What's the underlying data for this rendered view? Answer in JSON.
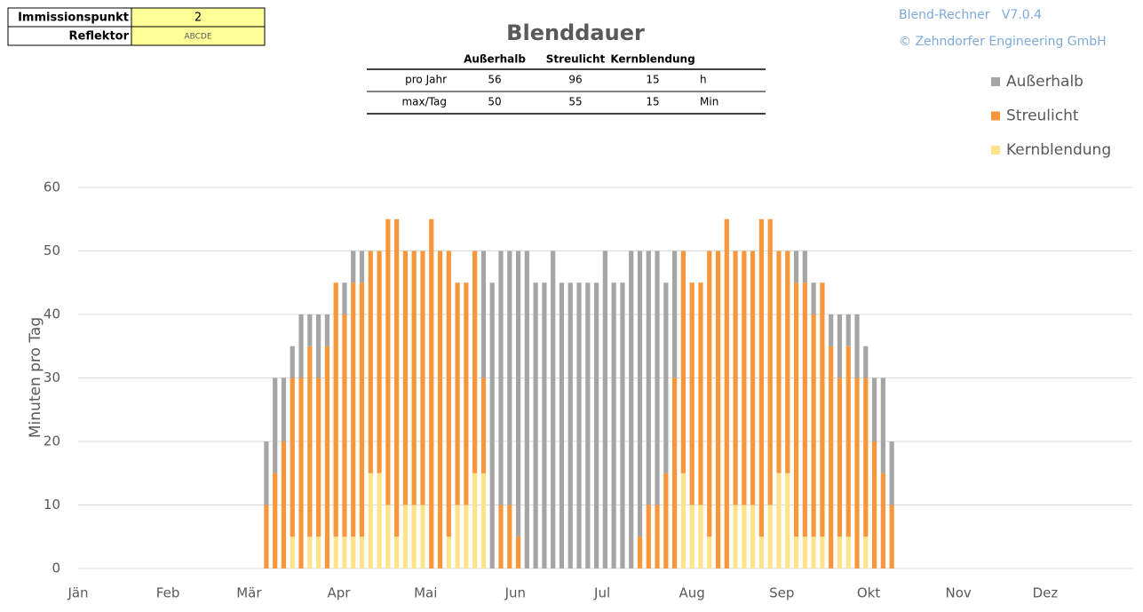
{
  "info": {
    "id_label": "Immissionspunkt",
    "id_value": 2,
    "reflector_label": "Reflektor",
    "reflector_value": "ABCDE",
    "version": "Blend-Rechner   V7.0.4",
    "company": "© Zehndorfer Engineering GmbH"
  },
  "summary": {
    "columns": [
      "Außerhalb",
      "Streulicht",
      "Kernblendung"
    ],
    "rows": [
      {
        "label": "pro Jahr",
        "values": [
          56,
          96,
          15
        ],
        "unit": "h"
      },
      {
        "label": "max/Tag",
        "values": [
          50,
          55,
          15
        ],
        "unit": "Min"
      }
    ]
  },
  "chart_data": {
    "type": "bar",
    "stacked": true,
    "title": "Blenddauer",
    "ylabel": "Minuten pro Tag",
    "x": [
      66,
      69,
      72,
      75,
      78,
      81,
      84,
      87,
      90,
      93,
      96,
      99,
      102,
      105,
      108,
      111,
      114,
      117,
      120,
      123,
      126,
      129,
      132,
      135,
      138,
      141,
      144,
      147,
      150,
      153,
      156,
      159,
      162,
      165,
      168,
      171,
      174,
      177,
      180,
      183,
      186,
      189,
      192,
      195,
      198,
      201,
      204,
      207,
      210,
      213,
      216,
      219,
      222,
      225,
      228,
      231,
      234,
      237,
      240,
      243,
      246,
      249,
      252,
      255,
      258,
      261,
      264,
      267,
      270,
      273,
      276,
      279,
      282
    ],
    "xlim": [
      1,
      366
    ],
    "xticks": [
      {
        "value": 1,
        "label": "Jän"
      },
      {
        "value": 32,
        "label": "Feb"
      },
      {
        "value": 60,
        "label": "Mär"
      },
      {
        "value": 91,
        "label": "Apr"
      },
      {
        "value": 121,
        "label": "Mai"
      },
      {
        "value": 152,
        "label": "Jun"
      },
      {
        "value": 182,
        "label": "Jul"
      },
      {
        "value": 213,
        "label": "Aug"
      },
      {
        "value": 244,
        "label": "Sep"
      },
      {
        "value": 274,
        "label": "Okt"
      },
      {
        "value": 305,
        "label": "Nov"
      },
      {
        "value": 335,
        "label": "Dez"
      }
    ],
    "ylim": [
      0,
      60
    ],
    "yticks": [
      0,
      10,
      20,
      30,
      40,
      50,
      60
    ],
    "grid": true,
    "series": [
      {
        "name": "Außerhalb",
        "color": "#a5a5a5",
        "values": [
          10,
          15,
          10,
          5,
          10,
          5,
          10,
          5,
          0,
          5,
          5,
          5,
          0,
          0,
          0,
          0,
          0,
          0,
          0,
          0,
          0,
          0,
          0,
          0,
          0,
          20,
          45,
          40,
          40,
          45,
          50,
          45,
          45,
          50,
          45,
          45,
          45,
          45,
          45,
          50,
          45,
          45,
          50,
          45,
          40,
          40,
          30,
          20,
          0,
          0,
          0,
          0,
          0,
          0,
          0,
          0,
          0,
          0,
          0,
          0,
          0,
          5,
          5,
          5,
          0,
          5,
          10,
          5,
          10,
          5,
          10,
          15,
          10
        ]
      },
      {
        "name": "Streulicht",
        "color": "#f7963a",
        "values": [
          10,
          15,
          20,
          25,
          30,
          30,
          25,
          35,
          40,
          35,
          40,
          40,
          35,
          35,
          45,
          50,
          40,
          40,
          40,
          55,
          50,
          45,
          35,
          35,
          35,
          15,
          0,
          10,
          10,
          5,
          0,
          0,
          0,
          0,
          0,
          0,
          0,
          0,
          0,
          0,
          0,
          0,
          0,
          5,
          10,
          10,
          15,
          30,
          35,
          35,
          35,
          45,
          50,
          55,
          40,
          40,
          40,
          50,
          45,
          35,
          35,
          40,
          40,
          35,
          40,
          35,
          25,
          30,
          30,
          25,
          20,
          15,
          10
        ]
      },
      {
        "name": "Kernblendung",
        "color": "#ffe38a",
        "values": [
          0,
          0,
          0,
          5,
          0,
          5,
          5,
          0,
          5,
          5,
          5,
          5,
          15,
          15,
          10,
          5,
          10,
          10,
          10,
          0,
          0,
          5,
          10,
          10,
          15,
          15,
          0,
          0,
          0,
          0,
          0,
          0,
          0,
          0,
          0,
          0,
          0,
          0,
          0,
          0,
          0,
          0,
          0,
          0,
          0,
          0,
          0,
          0,
          15,
          10,
          10,
          5,
          0,
          0,
          10,
          10,
          10,
          5,
          10,
          15,
          15,
          5,
          5,
          5,
          5,
          0,
          5,
          5,
          0,
          5,
          0,
          0,
          0
        ]
      }
    ]
  }
}
